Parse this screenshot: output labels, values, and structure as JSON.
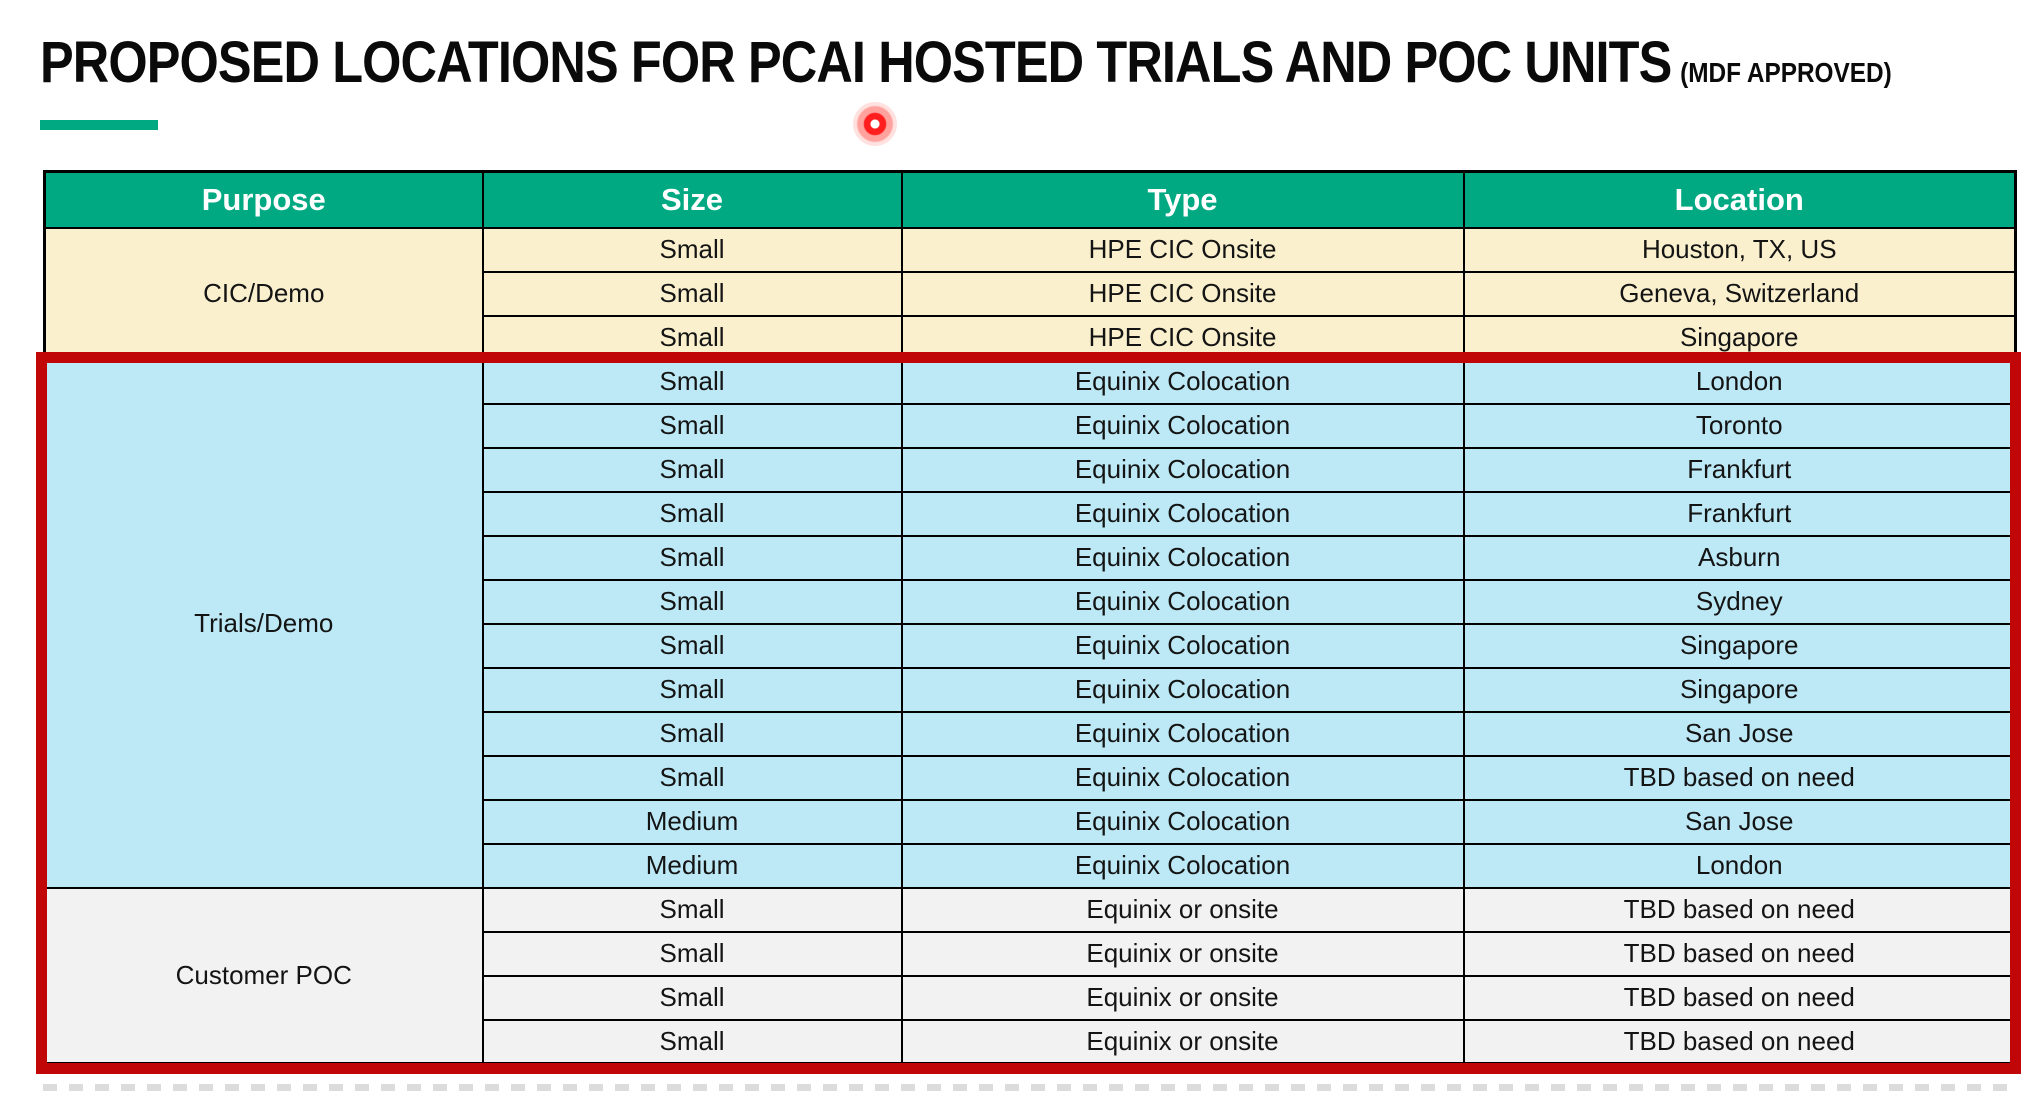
{
  "title": {
    "text": "PROPOSED LOCATIONS FOR PCAI HOSTED TRIALS AND POC UNITS",
    "suffix": "(MDF APPROVED)"
  },
  "colors": {
    "brand_green": "#01A982",
    "header_bg": "#01A982",
    "header_text": "#FFFFFF",
    "section_cic_bg": "#FAF0CE",
    "section_trials_bg": "#BDE9F6",
    "section_poc_bg": "#F2F2F2",
    "highlight_border": "#C00606",
    "table_border": "#000000",
    "laser_dot": "#FF1D1D"
  },
  "table": {
    "columns": [
      "Purpose",
      "Size",
      "Type",
      "Location"
    ],
    "sections": [
      {
        "purpose": "CIC/Demo",
        "bg": "#FAF0CE",
        "highlighted": false,
        "rows": [
          {
            "size": "Small",
            "type": "HPE CIC Onsite",
            "location": "Houston, TX, US"
          },
          {
            "size": "Small",
            "type": "HPE CIC Onsite",
            "location": "Geneva, Switzerland"
          },
          {
            "size": "Small",
            "type": "HPE CIC Onsite",
            "location": "Singapore"
          }
        ]
      },
      {
        "purpose": "Trials/Demo",
        "bg": "#BDE9F6",
        "highlighted": true,
        "rows": [
          {
            "size": "Small",
            "type": "Equinix Colocation",
            "location": "London"
          },
          {
            "size": "Small",
            "type": "Equinix Colocation",
            "location": "Toronto"
          },
          {
            "size": "Small",
            "type": "Equinix Colocation",
            "location": "Frankfurt"
          },
          {
            "size": "Small",
            "type": "Equinix Colocation",
            "location": "Frankfurt"
          },
          {
            "size": "Small",
            "type": "Equinix Colocation",
            "location": "Asburn"
          },
          {
            "size": "Small",
            "type": "Equinix Colocation",
            "location": "Sydney"
          },
          {
            "size": "Small",
            "type": "Equinix Colocation",
            "location": "Singapore"
          },
          {
            "size": "Small",
            "type": "Equinix Colocation",
            "location": "Singapore"
          },
          {
            "size": "Small",
            "type": "Equinix Colocation",
            "location": "San Jose"
          },
          {
            "size": "Small",
            "type": "Equinix Colocation",
            "location": "TBD based on need"
          },
          {
            "size": "Medium",
            "type": "Equinix Colocation",
            "location": "San Jose"
          },
          {
            "size": "Medium",
            "type": "Equinix Colocation",
            "location": "London"
          }
        ]
      },
      {
        "purpose": "Customer POC",
        "bg": "#F2F2F2",
        "highlighted": true,
        "rows": [
          {
            "size": "Small",
            "type": "Equinix or onsite",
            "location": "TBD based on need"
          },
          {
            "size": "Small",
            "type": "Equinix or onsite",
            "location": "TBD based on need"
          },
          {
            "size": "Small",
            "type": "Equinix or onsite",
            "location": "TBD based on need"
          },
          {
            "size": "Small",
            "type": "Equinix or onsite",
            "location": "TBD based on need"
          }
        ]
      }
    ]
  }
}
